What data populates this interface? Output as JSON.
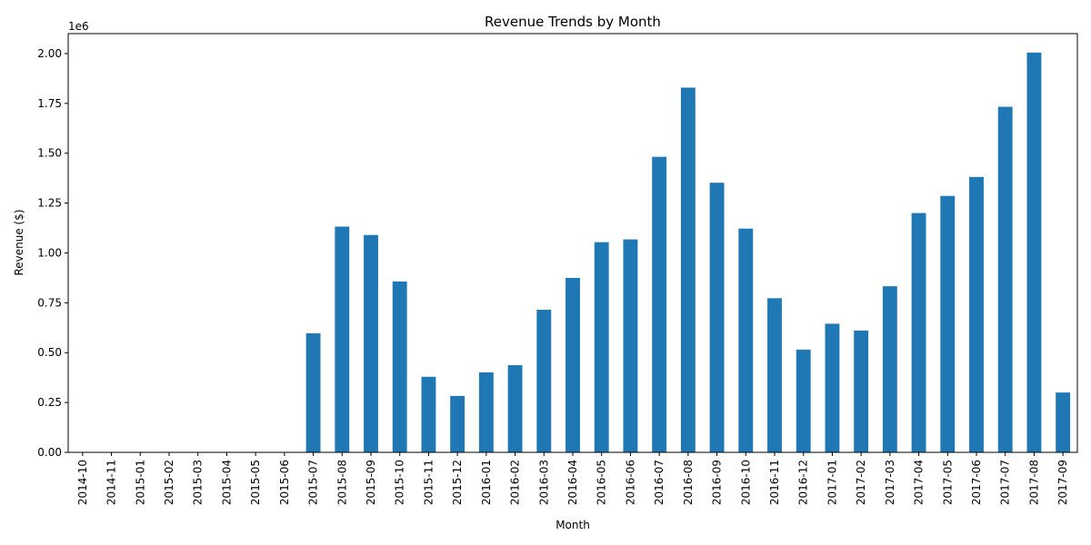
{
  "chart_data": {
    "type": "bar",
    "title": "Revenue Trends by Month",
    "xlabel": "Month",
    "ylabel": "Revenue ($)",
    "y_offset_text": "1e6",
    "ylim": [
      0,
      2.1
    ],
    "y_ticks": [
      "0.00",
      "0.25",
      "0.50",
      "0.75",
      "1.00",
      "1.25",
      "1.50",
      "1.75",
      "2.00"
    ],
    "grid": false,
    "bar_color": "#1f77b4",
    "categories": [
      "2014-10",
      "2014-11",
      "2015-01",
      "2015-02",
      "2015-03",
      "2015-04",
      "2015-05",
      "2015-06",
      "2015-07",
      "2015-08",
      "2015-09",
      "2015-10",
      "2015-11",
      "2015-12",
      "2016-01",
      "2016-02",
      "2016-03",
      "2016-04",
      "2016-05",
      "2016-06",
      "2016-07",
      "2016-08",
      "2016-09",
      "2016-10",
      "2016-11",
      "2016-12",
      "2017-01",
      "2017-02",
      "2017-03",
      "2017-04",
      "2017-05",
      "2017-06",
      "2017-07",
      "2017-08",
      "2017-09"
    ],
    "values": [
      0,
      0,
      0,
      0,
      0,
      0,
      0,
      0,
      0.597,
      1.132,
      1.09,
      0.857,
      0.379,
      0.283,
      0.401,
      0.437,
      0.715,
      0.875,
      1.054,
      1.068,
      1.482,
      1.829,
      1.352,
      1.122,
      0.773,
      0.515,
      0.645,
      0.611,
      0.833,
      1.2,
      1.286,
      1.381,
      1.733,
      2.005,
      0.3
    ]
  }
}
